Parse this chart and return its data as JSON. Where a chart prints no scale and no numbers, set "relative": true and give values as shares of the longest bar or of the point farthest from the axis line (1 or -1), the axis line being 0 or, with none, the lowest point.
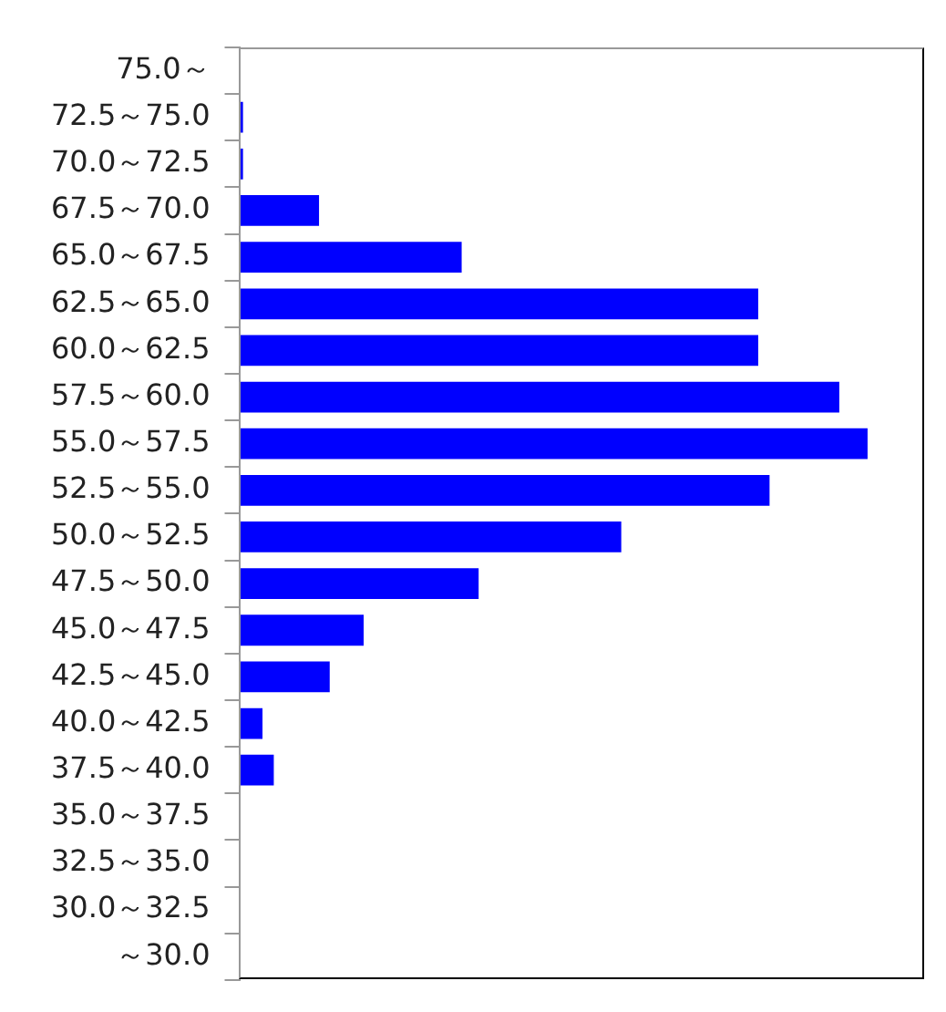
{
  "chart_data": {
    "type": "bar",
    "orientation": "horizontal",
    "relative": true,
    "color": "#0000ff",
    "grid": false,
    "legend": false,
    "categories": [
      "75.0～",
      "72.5～75.0",
      "70.0～72.5",
      "67.5～70.0",
      "65.0～67.5",
      "62.5～65.0",
      "60.0～62.5",
      "57.5～60.0",
      "55.0～57.5",
      "52.5～55.0",
      "50.0～52.5",
      "47.5～50.0",
      "45.0～47.5",
      "42.5～45.0",
      "40.0～42.5",
      "37.5～40.0",
      "35.0～37.5",
      "32.5～35.0",
      "30.0～32.5",
      "～30.0"
    ],
    "values": [
      0,
      0.006,
      0.006,
      0.127,
      0.354,
      0.826,
      0.826,
      0.955,
      1,
      0.844,
      0.608,
      0.381,
      0.198,
      0.144,
      0.037,
      0.055,
      0,
      0,
      0,
      0
    ]
  }
}
